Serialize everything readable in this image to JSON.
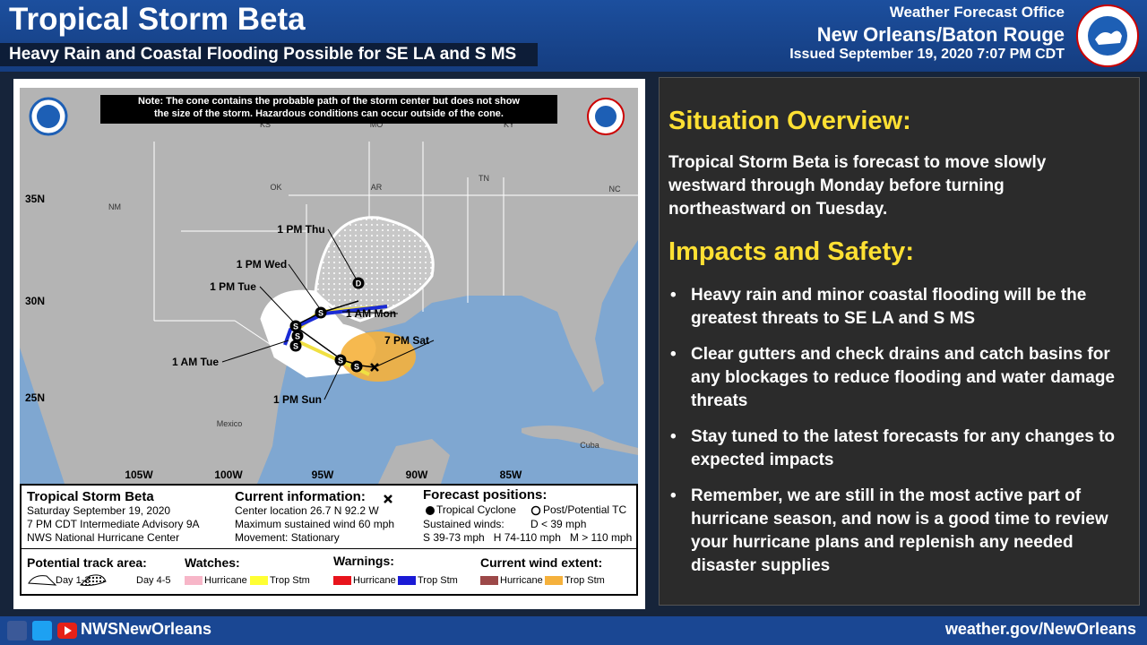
{
  "header": {
    "title": "Tropical Storm Beta",
    "subtitle": "Heavy Rain and Coastal Flooding Possible for SE LA and S MS",
    "office": "Weather Forecast Office",
    "location": "New Orleans/Baton Rouge",
    "issued": "Issued September 19, 2020 7:07 PM CDT"
  },
  "map": {
    "note": [
      "Note: The cone contains the probable path of the storm center but does not show",
      "the size of the storm. Hazardous conditions can occur outside of the cone."
    ],
    "place_labels": [
      "KS",
      "MO",
      "KY",
      "OK",
      "AR",
      "TN",
      "NC",
      "NM",
      "Mexico",
      "Cuba"
    ],
    "lat_labels": [
      "35N",
      "30N",
      "25N"
    ],
    "lon_labels": [
      "105W",
      "100W",
      "95W",
      "90W",
      "85W"
    ],
    "time_labels": [
      "1 PM Thu",
      "1 PM Wed",
      "1 PM Tue",
      "1 AM Mon",
      "7 PM Sat",
      "1 AM Tue",
      "1 PM Sun"
    ],
    "position_markers": [
      "S",
      "S",
      "S",
      "S",
      "S",
      "S",
      "D"
    ]
  },
  "info": {
    "storm": {
      "name": "Tropical Storm Beta",
      "date": "Saturday September 19, 2020",
      "advisory": "7 PM CDT Intermediate Advisory 9A",
      "source": "NWS National Hurricane Center"
    },
    "current": {
      "heading": "Current information:",
      "lines": [
        "Center location 26.7 N 92.2 W",
        "Maximum sustained wind 60 mph",
        "Movement: Stationary"
      ]
    },
    "forecast": {
      "heading": "Forecast positions:",
      "tropical": "Tropical Cyclone",
      "post": "Post/Potential TC",
      "winds": "Sustained winds:",
      "d": "D < 39 mph",
      "scale": "S 39-73 mph   H 74-110 mph   M > 110 mph"
    },
    "legend": {
      "track": "Potential track area:",
      "day13": "Day 1-3",
      "day45": "Day 4-5",
      "watches": "Watches:",
      "watch_hurricane": "Hurricane",
      "watch_storm": "Trop Stm",
      "warnings": "Warnings:",
      "warn_hurricane": "Hurricane",
      "warn_storm": "Trop Stm",
      "wind": "Current wind extent:",
      "wind_hurricane": "Hurricane",
      "wind_storm": "Trop Stm"
    }
  },
  "overview": {
    "heading": "Situation Overview:",
    "text": "Tropical Storm Beta is forecast to move slowly westward through Monday before turning northeastward on Tuesday."
  },
  "impacts": {
    "heading": "Impacts and Safety:",
    "bullets": [
      "Heavy rain and minor coastal flooding will be the greatest threats to SE LA and S MS",
      "Clear gutters and check drains and catch basins for any blockages to reduce flooding and water damage threats",
      "Stay tuned to the latest forecasts for any changes to expected impacts",
      "Remember, we are still in the most active part of hurricane season, and now is a good time to review your hurricane plans and replenish any needed disaster supplies"
    ]
  },
  "footer": {
    "social": "NWSNewOrleans",
    "website": "weather.gov/NewOrleans"
  }
}
